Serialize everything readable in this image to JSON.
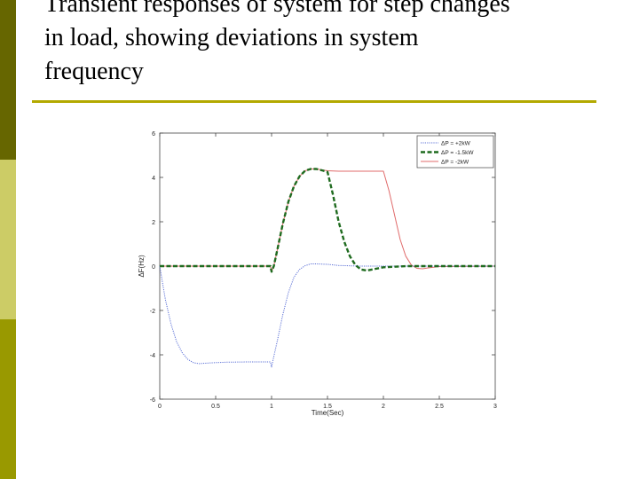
{
  "slide": {
    "title_lines": [
      "Transient responses of system for step changes",
      "in load,  showing deviations in system",
      "frequency"
    ],
    "accent_colors": {
      "dark": "#666600",
      "light": "#cccc66",
      "mid": "#999900",
      "rule": "#b3a900"
    }
  },
  "chart_data": {
    "type": "line",
    "title": "",
    "xlabel": "Time(Sec)",
    "ylabel": "ΔF(Hz)",
    "xlim": [
      0,
      3
    ],
    "ylim": [
      -6,
      6
    ],
    "xticks": [
      "0",
      "0.5",
      "1",
      "1.5",
      "2",
      "2.5",
      "3"
    ],
    "yticks": [
      "-6",
      "-4",
      "-2",
      "0",
      "2",
      "4",
      "6"
    ],
    "grid": false,
    "legend_position": "top-right",
    "series": [
      {
        "name": "ΔP = +2kW",
        "color": "#5a6fd6",
        "style": "dotted",
        "x": [
          0,
          0.02,
          0.05,
          0.1,
          0.15,
          0.2,
          0.25,
          0.3,
          0.35,
          0.4,
          0.5,
          0.6,
          0.8,
          0.99,
          1.0,
          1.01,
          1.05,
          1.1,
          1.15,
          1.2,
          1.25,
          1.3,
          1.35,
          1.4,
          1.5,
          1.6,
          1.8,
          2.0,
          3.0
        ],
        "y": [
          0,
          -0.6,
          -1.5,
          -2.6,
          -3.4,
          -3.9,
          -4.2,
          -4.35,
          -4.4,
          -4.38,
          -4.35,
          -4.33,
          -4.32,
          -4.32,
          -4.55,
          -4.3,
          -3.4,
          -2.2,
          -1.2,
          -0.5,
          -0.15,
          0.02,
          0.1,
          0.1,
          0.08,
          0.03,
          0.0,
          0.0,
          0.0
        ]
      },
      {
        "name": "ΔP = -1.5kW",
        "color": "#1f6b1f",
        "style": "dashed",
        "x": [
          0,
          0.99,
          1.0,
          1.02,
          1.05,
          1.1,
          1.15,
          1.2,
          1.25,
          1.3,
          1.35,
          1.4,
          1.45,
          1.5,
          1.55,
          1.6,
          1.65,
          1.7,
          1.75,
          1.8,
          1.85,
          1.9,
          2.0,
          2.2,
          3.0
        ],
        "y": [
          0,
          0,
          -0.25,
          0.0,
          0.7,
          1.9,
          2.9,
          3.6,
          4.05,
          4.3,
          4.38,
          4.38,
          4.32,
          4.25,
          3.2,
          2.0,
          1.1,
          0.45,
          0.05,
          -0.15,
          -0.2,
          -0.15,
          -0.05,
          0.0,
          0.0
        ]
      },
      {
        "name": "ΔP = -2kW",
        "color": "#e06b6b",
        "style": "solid",
        "x": [
          0,
          0.99,
          1.0,
          1.02,
          1.05,
          1.1,
          1.15,
          1.2,
          1.25,
          1.3,
          1.35,
          1.4,
          1.5,
          1.6,
          1.8,
          2.0,
          2.05,
          2.1,
          2.15,
          2.2,
          2.25,
          2.3,
          2.35,
          2.4,
          2.5,
          3.0
        ],
        "y": [
          0,
          0,
          -0.25,
          0.0,
          0.7,
          1.9,
          2.9,
          3.6,
          4.05,
          4.3,
          4.38,
          4.38,
          4.3,
          4.28,
          4.28,
          4.28,
          3.4,
          2.3,
          1.2,
          0.45,
          0.05,
          -0.1,
          -0.12,
          -0.08,
          -0.02,
          0.0
        ]
      }
    ]
  }
}
